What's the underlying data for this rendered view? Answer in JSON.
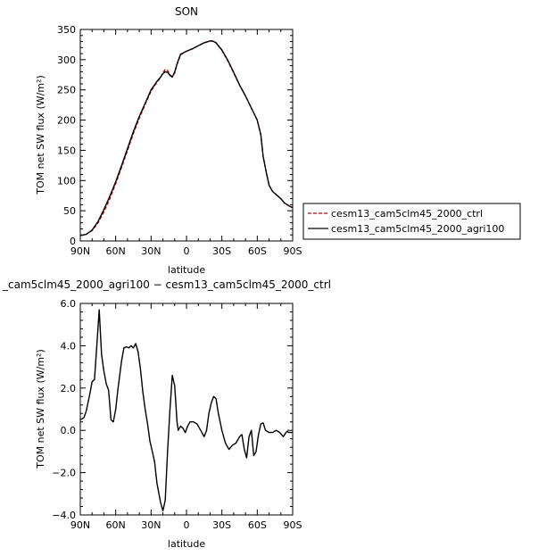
{
  "chart_data": [
    {
      "type": "line",
      "title": "SON",
      "xlabel": "latitude",
      "ylabel": "TOM net SW flux (W/m²)",
      "xlim": [
        90,
        -90
      ],
      "ylim": [
        0,
        350
      ],
      "xticks": [
        90,
        60,
        30,
        0,
        -30,
        -60,
        -90
      ],
      "xtick_labels": [
        "90N",
        "60N",
        "30N",
        "0",
        "30S",
        "60S",
        "90S"
      ],
      "yticks": [
        0,
        50,
        100,
        150,
        200,
        250,
        300,
        350
      ],
      "ytick_labels": [
        "0",
        "50",
        "100",
        "150",
        "200",
        "250",
        "300",
        "350"
      ],
      "legend_placement": "right",
      "series": [
        {
          "name": "cesm13_cam5clm45_2000_ctrl",
          "color": "#cc0000",
          "dash": "dashed",
          "points": [
            [
              90,
              9
            ],
            [
              85,
              11
            ],
            [
              80,
              17
            ],
            [
              75,
              30
            ],
            [
              70,
              48
            ],
            [
              65,
              70
            ],
            [
              60,
              95
            ],
            [
              55,
              122
            ],
            [
              50,
              150
            ],
            [
              45,
              178
            ],
            [
              40,
              203
            ],
            [
              35,
              226
            ],
            [
              30,
              248
            ],
            [
              25,
              263
            ],
            [
              22,
              270
            ],
            [
              20,
              278
            ],
            [
              18,
              284
            ],
            [
              16,
              282
            ],
            [
              14,
              275
            ],
            [
              12,
              272
            ],
            [
              10,
              278
            ],
            [
              8,
              292
            ],
            [
              5,
              308
            ],
            [
              0,
              314
            ],
            [
              -5,
              318
            ],
            [
              -10,
              323
            ],
            [
              -15,
              328
            ],
            [
              -20,
              331
            ],
            [
              -22,
              331
            ],
            [
              -25,
              328
            ],
            [
              -30,
              315
            ],
            [
              -35,
              298
            ],
            [
              -40,
              278
            ],
            [
              -45,
              258
            ],
            [
              -50,
              240
            ],
            [
              -55,
              220
            ],
            [
              -60,
              200
            ],
            [
              -63,
              175
            ],
            [
              -65,
              140
            ],
            [
              -68,
              110
            ],
            [
              -70,
              92
            ],
            [
              -73,
              82
            ],
            [
              -77,
              75
            ],
            [
              -80,
              70
            ],
            [
              -83,
              63
            ],
            [
              -87,
              58
            ],
            [
              -90,
              55
            ]
          ]
        },
        {
          "name": "cesm13_cam5clm45_2000_agri100",
          "color": "#000000",
          "dash": "solid",
          "points": [
            [
              90,
              9
            ],
            [
              85,
              11
            ],
            [
              80,
              18
            ],
            [
              75,
              32
            ],
            [
              70,
              52
            ],
            [
              65,
              74
            ],
            [
              60,
              98
            ],
            [
              55,
              125
            ],
            [
              50,
              153
            ],
            [
              45,
              181
            ],
            [
              40,
              206
            ],
            [
              35,
              228
            ],
            [
              30,
              250
            ],
            [
              25,
              264
            ],
            [
              22,
              271
            ],
            [
              20,
              277
            ],
            [
              18,
              280
            ],
            [
              16,
              279
            ],
            [
              14,
              274
            ],
            [
              12,
              271
            ],
            [
              10,
              280
            ],
            [
              8,
              293
            ],
            [
              5,
              309
            ],
            [
              0,
              314
            ],
            [
              -5,
              318
            ],
            [
              -10,
              323
            ],
            [
              -15,
              328
            ],
            [
              -20,
              331
            ],
            [
              -22,
              331
            ],
            [
              -25,
              328
            ],
            [
              -30,
              316
            ],
            [
              -35,
              299
            ],
            [
              -40,
              279
            ],
            [
              -45,
              258
            ],
            [
              -50,
              240
            ],
            [
              -55,
              220
            ],
            [
              -60,
              200
            ],
            [
              -63,
              176
            ],
            [
              -65,
              140
            ],
            [
              -68,
              110
            ],
            [
              -70,
              92
            ],
            [
              -73,
              82
            ],
            [
              -77,
              75
            ],
            [
              -80,
              70
            ],
            [
              -83,
              63
            ],
            [
              -87,
              58
            ],
            [
              -90,
              55
            ]
          ]
        }
      ]
    },
    {
      "type": "line",
      "title": "_cam5clm45_2000_agri100 − cesm13_cam5clm45_2000_ctrl",
      "xlabel": "latitude",
      "ylabel": "TOM net SW flux (W/m²)",
      "xlim": [
        90,
        -90
      ],
      "ylim": [
        -4,
        6
      ],
      "xticks": [
        90,
        60,
        30,
        0,
        -30,
        -60,
        -90
      ],
      "xtick_labels": [
        "90N",
        "60N",
        "30N",
        "0",
        "30S",
        "60S",
        "90S"
      ],
      "yticks": [
        -4,
        -2,
        0,
        2,
        4,
        6
      ],
      "ytick_labels": [
        "−4.0",
        "−2.0",
        "0.0",
        "2.0",
        "4.0",
        "6.0"
      ],
      "series": [
        {
          "color": "#000000",
          "dash": "solid",
          "points": [
            [
              90,
              0.5
            ],
            [
              87,
              0.6
            ],
            [
              85,
              0.9
            ],
            [
              82,
              1.7
            ],
            [
              80,
              2.3
            ],
            [
              78,
              2.4
            ],
            [
              76,
              4.0
            ],
            [
              74,
              5.7
            ],
            [
              72,
              3.6
            ],
            [
              70,
              2.8
            ],
            [
              68,
              2.2
            ],
            [
              66,
              1.9
            ],
            [
              64,
              0.5
            ],
            [
              62,
              0.4
            ],
            [
              60,
              1.0
            ],
            [
              58,
              2.0
            ],
            [
              55,
              3.3
            ],
            [
              53,
              3.9
            ],
            [
              51,
              3.95
            ],
            [
              49,
              3.9
            ],
            [
              47,
              4.0
            ],
            [
              45,
              3.9
            ],
            [
              43,
              4.1
            ],
            [
              41,
              3.7
            ],
            [
              39,
              2.9
            ],
            [
              37,
              1.8
            ],
            [
              35,
              1.0
            ],
            [
              33,
              0.3
            ],
            [
              31,
              -0.5
            ],
            [
              29,
              -1.0
            ],
            [
              27,
              -1.5
            ],
            [
              25,
              -2.5
            ],
            [
              22,
              -3.4
            ],
            [
              20,
              -3.8
            ],
            [
              18,
              -3.3
            ],
            [
              16,
              -1.0
            ],
            [
              14,
              1.0
            ],
            [
              12,
              2.6
            ],
            [
              10,
              2.1
            ],
            [
              8,
              0.4
            ],
            [
              7,
              0
            ],
            [
              5,
              0.2
            ],
            [
              3,
              0.1
            ],
            [
              1,
              -0.1
            ],
            [
              -1,
              0.2
            ],
            [
              -3,
              0.4
            ],
            [
              -6,
              0.4
            ],
            [
              -9,
              0.3
            ],
            [
              -12,
              0
            ],
            [
              -15,
              -0.3
            ],
            [
              -17,
              0
            ],
            [
              -19,
              0.8
            ],
            [
              -21,
              1.3
            ],
            [
              -23,
              1.6
            ],
            [
              -25,
              1.5
            ],
            [
              -27,
              0.8
            ],
            [
              -30,
              0
            ],
            [
              -33,
              -0.6
            ],
            [
              -36,
              -0.9
            ],
            [
              -39,
              -0.7
            ],
            [
              -42,
              -0.6
            ],
            [
              -45,
              -0.3
            ],
            [
              -47,
              -0.2
            ],
            [
              -49,
              -0.9
            ],
            [
              -51,
              -1.3
            ],
            [
              -53,
              -0.3
            ],
            [
              -55,
              0
            ],
            [
              -57,
              -1.2
            ],
            [
              -59,
              -1.0
            ],
            [
              -61,
              -0.2
            ],
            [
              -63,
              0.3
            ],
            [
              -65,
              0.35
            ],
            [
              -67,
              0
            ],
            [
              -70,
              -0.1
            ],
            [
              -73,
              -0.1
            ],
            [
              -76,
              0
            ],
            [
              -79,
              -0.1
            ],
            [
              -82,
              -0.3
            ],
            [
              -85,
              -0.05
            ],
            [
              -87,
              -0.1
            ],
            [
              -90,
              -0.1
            ]
          ]
        }
      ]
    }
  ]
}
